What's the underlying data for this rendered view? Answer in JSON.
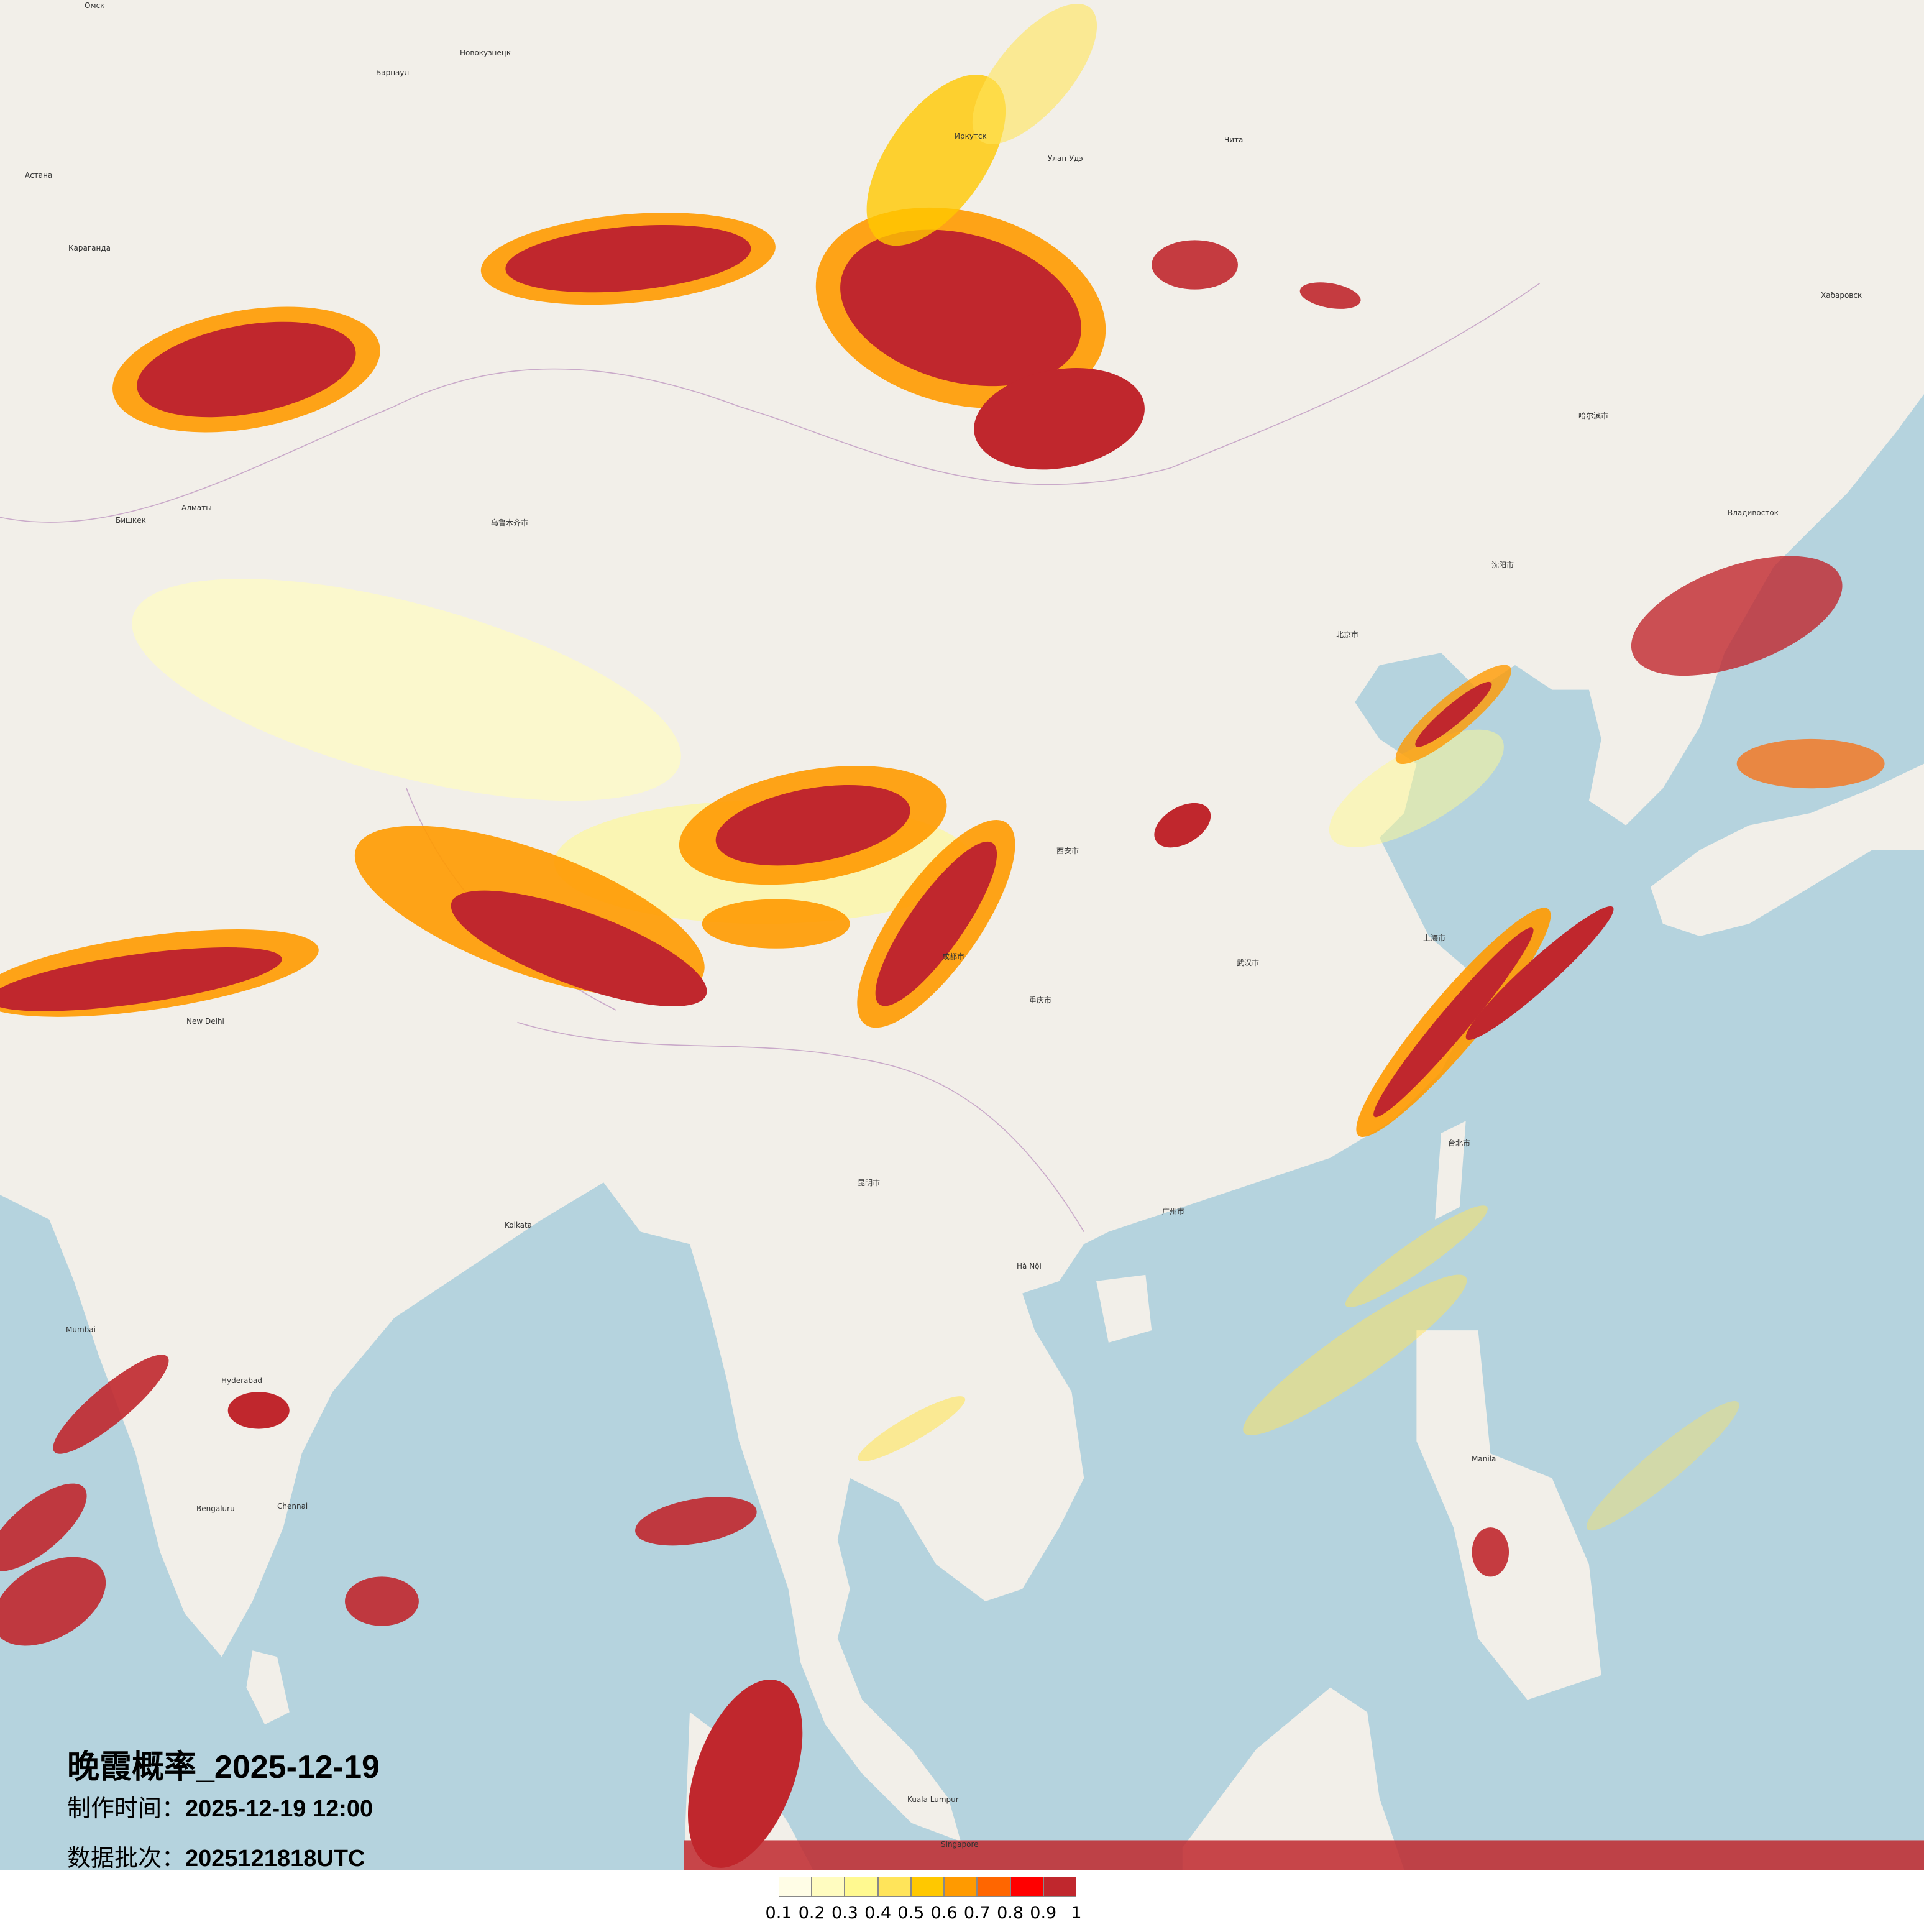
{
  "title": "晚霞概率_2025-12-19",
  "production_time": {
    "label": "制作时间：",
    "value": "2025-12-19 12:00"
  },
  "data_batch": {
    "label": "数据批次：",
    "value": "2025121818UTC"
  },
  "colors": {
    "land": "#f2efe9",
    "sea": "#b5d3de",
    "dark_red": "#c0272d",
    "red": "#ff0000",
    "orange": "#ff6600"
  },
  "legend": {
    "ticks": [
      "0.1",
      "0.2",
      "0.3",
      "0.4",
      "0.5",
      "0.6",
      "0.7",
      "0.8",
      "0.9",
      "1"
    ],
    "colors": [
      "#fffde6",
      "#fffcc0",
      "#fff990",
      "#ffe45a",
      "#ffc800",
      "#ff9a00",
      "#ff6600",
      "#ff0000",
      "#c0272d"
    ]
  },
  "map_labels": [
    "Омск",
    "Барнаул",
    "Новокузнецк",
    "Астана",
    "Караганда",
    "Алматы",
    "Бишкек",
    "Иркутск",
    "Улан-Удэ",
    "Чита",
    "Хабаровск",
    "Владивосток",
    "New Delhi",
    "Kolkata",
    "Mumbai",
    "Hyderabad",
    "Bengaluru",
    "Chennai",
    "Hà Nội",
    "Manila",
    "Kuala Lumpur",
    "Singapore",
    "乌鲁木齐市",
    "北京市",
    "上海市",
    "武汉市",
    "重庆市",
    "成都市",
    "广州市",
    "西安市",
    "哈尔滨市",
    "沈阳市",
    "台北市",
    "昆明市"
  ]
}
